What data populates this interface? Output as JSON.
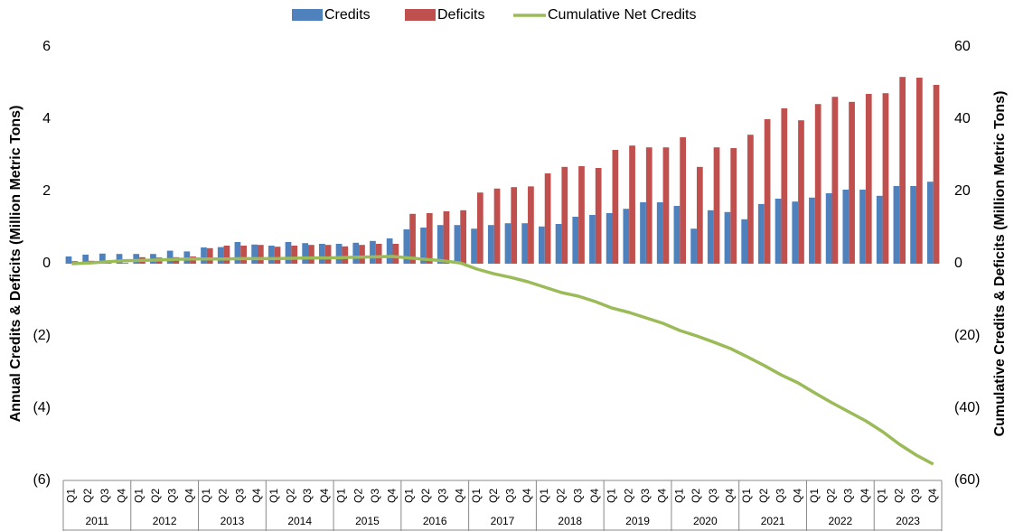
{
  "chart_data": {
    "type": "bar_line",
    "categories": [
      "Q1",
      "Q2",
      "Q3",
      "Q4",
      "Q1",
      "Q2",
      "Q3",
      "Q4",
      "Q1",
      "Q2",
      "Q3",
      "Q4",
      "Q1",
      "Q2",
      "Q3",
      "Q4",
      "Q1",
      "Q2",
      "Q3",
      "Q4",
      "Q1",
      "Q2",
      "Q3",
      "Q4",
      "Q1",
      "Q2",
      "Q3",
      "Q4",
      "Q1",
      "Q2",
      "Q3",
      "Q4",
      "Q1",
      "Q2",
      "Q3",
      "Q4",
      "Q1",
      "Q2",
      "Q3",
      "Q4",
      "Q1",
      "Q2",
      "Q3",
      "Q4",
      "Q1",
      "Q2",
      "Q3",
      "Q4",
      "Q1",
      "Q2",
      "Q3",
      "Q4"
    ],
    "groups": [
      "2011",
      "2012",
      "2013",
      "2014",
      "2015",
      "2016",
      "2017",
      "2018",
      "2019",
      "2020",
      "2021",
      "2022",
      "2023"
    ],
    "series": [
      {
        "name": "Credits",
        "color": "#4f81bd",
        "type": "bar",
        "values": [
          0.2,
          0.25,
          0.28,
          0.27,
          0.27,
          0.27,
          0.36,
          0.34,
          0.45,
          0.46,
          0.6,
          0.53,
          0.5,
          0.6,
          0.57,
          0.55,
          0.55,
          0.58,
          0.63,
          0.7,
          0.95,
          1.0,
          1.07,
          1.07,
          0.97,
          1.07,
          1.12,
          1.12,
          1.03,
          1.1,
          1.3,
          1.35,
          1.4,
          1.52,
          1.7,
          1.7,
          1.6,
          0.97,
          1.48,
          1.43,
          1.23,
          1.65,
          1.8,
          1.72,
          1.83,
          1.95,
          2.05,
          2.05,
          1.88,
          2.15,
          2.15,
          2.27
        ]
      },
      {
        "name": "Deficits",
        "color": "#c0504d",
        "type": "bar",
        "values": [
          0.07,
          0.08,
          0.02,
          0.02,
          0.18,
          0.17,
          0.18,
          0.2,
          0.43,
          0.5,
          0.5,
          0.52,
          0.47,
          0.5,
          0.52,
          0.52,
          0.48,
          0.52,
          0.55,
          0.55,
          1.38,
          1.4,
          1.45,
          1.48,
          1.97,
          2.08,
          2.12,
          2.14,
          2.5,
          2.68,
          2.7,
          2.65,
          3.15,
          3.27,
          3.22,
          3.22,
          3.5,
          2.68,
          3.22,
          3.2,
          3.57,
          4.0,
          4.3,
          3.97,
          4.42,
          4.62,
          4.48,
          4.7,
          4.72,
          5.17,
          5.15,
          4.95
        ]
      },
      {
        "name": "Cumulative Net Credits",
        "color": "#9bbb59",
        "type": "line",
        "axis": "y2",
        "values": [
          0,
          0.2,
          0.5,
          0.8,
          0.9,
          1.0,
          1.2,
          1.3,
          1.3,
          1.3,
          1.4,
          1.4,
          1.4,
          1.5,
          1.6,
          1.6,
          1.7,
          1.8,
          1.9,
          2.0,
          1.6,
          1.2,
          0.8,
          0.2,
          -1.5,
          -2.8,
          -3.8,
          -5,
          -6.5,
          -8,
          -9,
          -10.5,
          -12.3,
          -13.5,
          -15,
          -16.5,
          -18.5,
          -20,
          -21.7,
          -23.5,
          -25.8,
          -28.2,
          -30.8,
          -33,
          -35.8,
          -38.5,
          -41,
          -43.5,
          -46.5,
          -50,
          -53,
          -55.5
        ]
      }
    ],
    "ylabel": "Annual Credits & Deficits (Million Metric Tons)",
    "y2label": "Cumulative Credits & Deficits (Million Metric Tons)",
    "ylim": [
      -6,
      6
    ],
    "yticks": [
      {
        "value": -6,
        "label": "(6)"
      },
      {
        "value": -4,
        "label": "(4)"
      },
      {
        "value": -2,
        "label": "(2)"
      },
      0,
      2,
      4,
      6
    ],
    "y2lim": [
      -60,
      60
    ],
    "y2ticks": [
      {
        "value": -60,
        "label": "(60)"
      },
      {
        "value": -40,
        "label": "(40)"
      },
      {
        "value": -20,
        "label": "(20)"
      },
      0,
      20,
      40,
      60
    ],
    "grid": false,
    "legend": "top"
  }
}
